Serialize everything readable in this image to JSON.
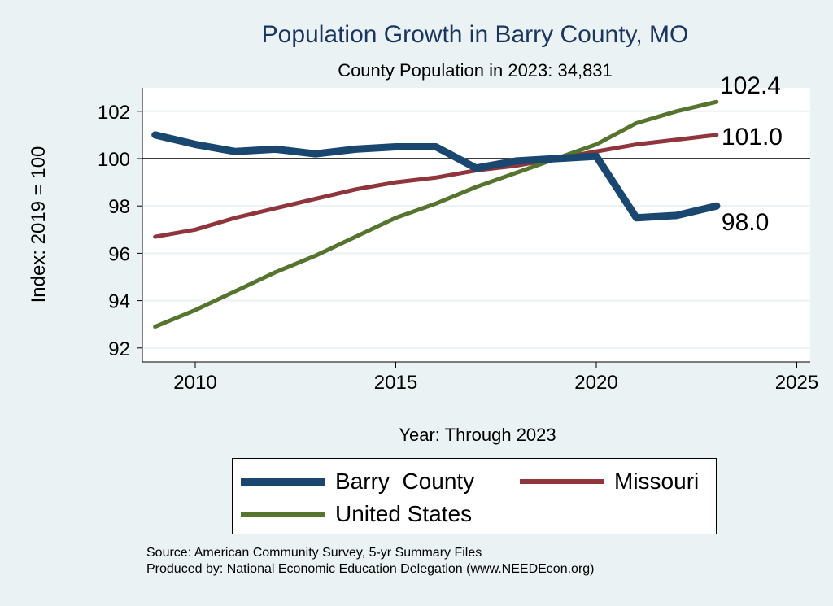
{
  "chart_data": {
    "type": "line",
    "title": "Population Growth in Barry County, MO",
    "subtitle": "County Population in 2023: 34,831",
    "xlabel": "Year: Through 2023",
    "ylabel": "Index: 2019 = 100",
    "xlim": [
      2008.3,
      2025.2
    ],
    "ylim": [
      91.5,
      103
    ],
    "xticks": [
      2010,
      2015,
      2020,
      2025
    ],
    "yticks": [
      92,
      94,
      96,
      98,
      100,
      102
    ],
    "reference_line": 100,
    "grid": true,
    "legend_position": "bottom",
    "x": [
      2009,
      2010,
      2011,
      2012,
      2013,
      2014,
      2015,
      2016,
      2017,
      2018,
      2019,
      2020,
      2021,
      2022,
      2023
    ],
    "series": [
      {
        "name": "Barry  County",
        "color": "#1a476f",
        "width": 9,
        "end_label": "98.0",
        "values": [
          101.0,
          100.6,
          100.3,
          100.4,
          100.2,
          100.4,
          100.5,
          100.5,
          99.6,
          99.9,
          100.0,
          100.1,
          97.5,
          97.6,
          98.0
        ]
      },
      {
        "name": "Missouri",
        "color": "#90353b",
        "width": 5,
        "end_label": "101.0",
        "values": [
          96.7,
          97.0,
          97.5,
          97.9,
          98.3,
          98.7,
          99.0,
          99.2,
          99.5,
          99.7,
          100.0,
          100.3,
          100.6,
          100.8,
          101.0
        ]
      },
      {
        "name": "United States",
        "color": "#55752f",
        "width": 5,
        "end_label": "102.4",
        "values": [
          92.9,
          93.6,
          94.4,
          95.2,
          95.9,
          96.7,
          97.5,
          98.1,
          98.8,
          99.4,
          100.0,
          100.6,
          101.5,
          102.0,
          102.4
        ]
      }
    ]
  },
  "source": "Source: American Community Survey, 5-yr Summary Files",
  "produced_by": "Produced by: National Economic Education Delegation (www.NEEDEcon.org)"
}
